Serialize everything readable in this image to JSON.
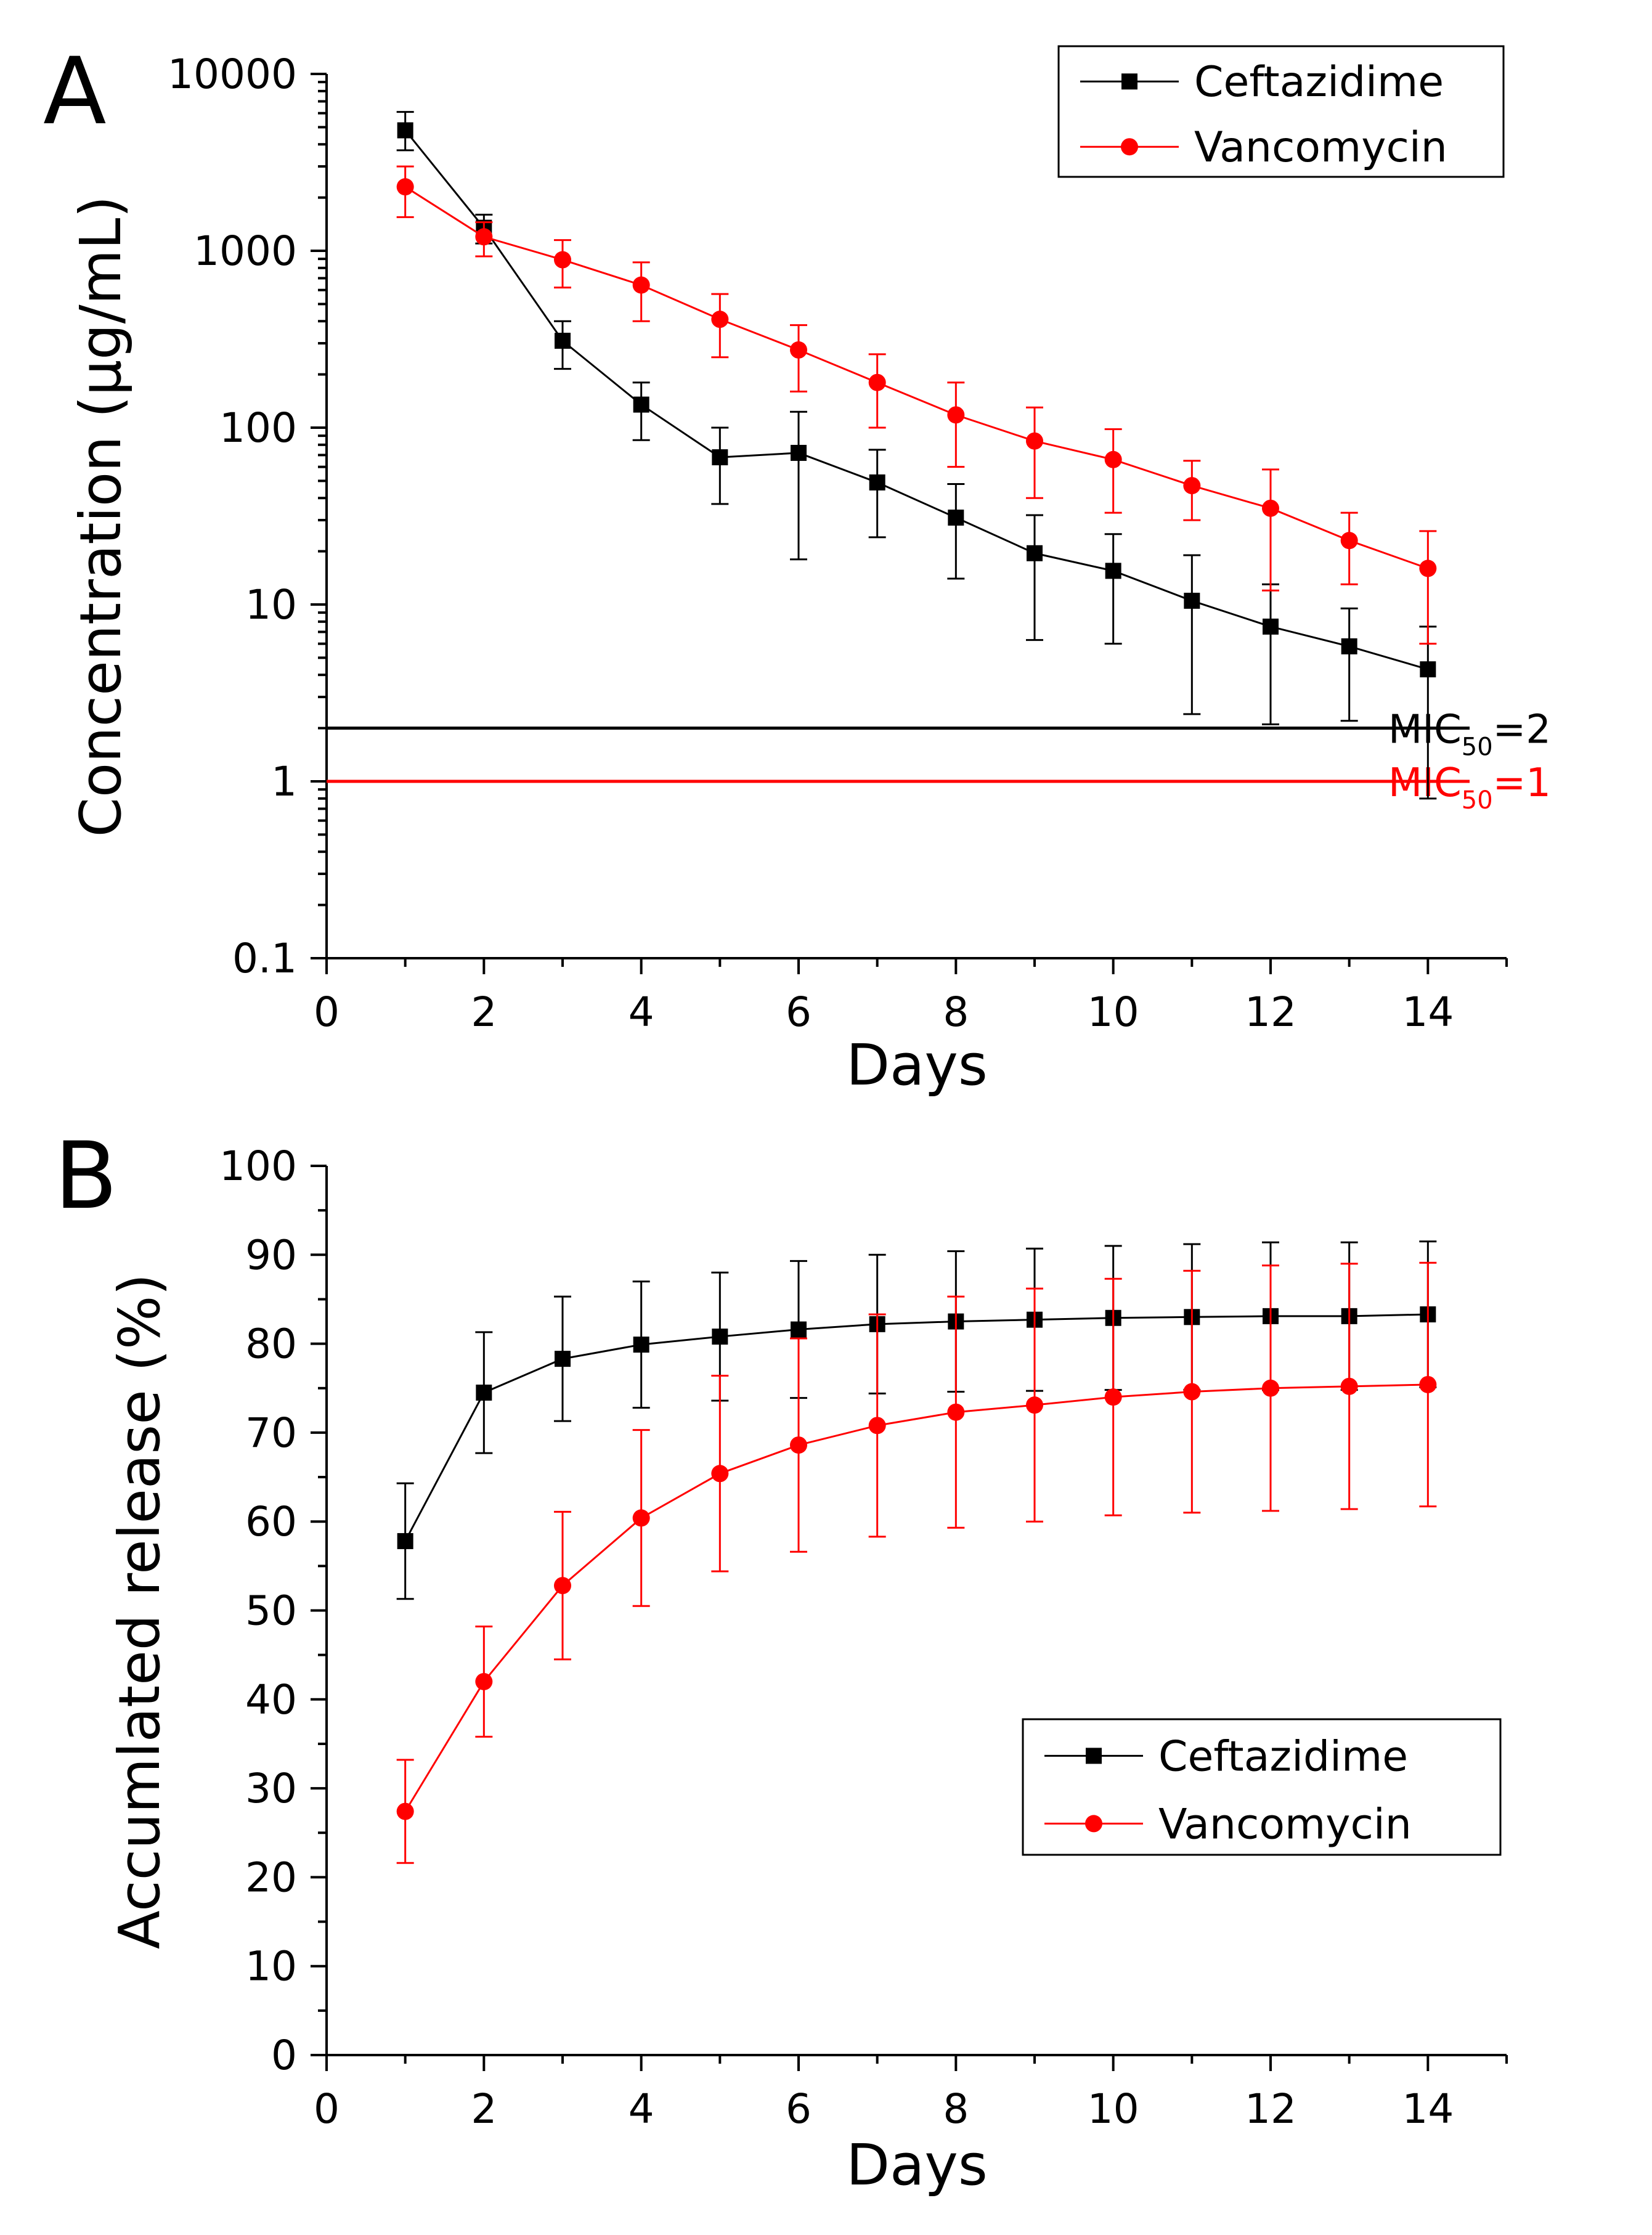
{
  "chart_data": [
    {
      "panel_label": "A",
      "type": "line",
      "yscale": "log",
      "xlabel": "Days",
      "ylabel": "Concentration (μg/mL)",
      "xlim": [
        0,
        15
      ],
      "ylim": [
        0.1,
        10000
      ],
      "xticks": [
        "0",
        "2",
        "4",
        "6",
        "8",
        "10",
        "12",
        "14"
      ],
      "xtick_values": [
        0,
        2,
        4,
        6,
        8,
        10,
        12,
        14
      ],
      "yticks": [
        "0.1",
        "1",
        "10",
        "100",
        "1000",
        "10000"
      ],
      "ytick_values": [
        0.1,
        1,
        10,
        100,
        1000,
        10000
      ],
      "legend_position": "top-right",
      "x": [
        1,
        2,
        3,
        4,
        5,
        6,
        7,
        8,
        9,
        10,
        11,
        12,
        13,
        14
      ],
      "series": [
        {
          "name": "Ceftazidime",
          "color": "#000000",
          "marker": "square",
          "values": [
            4800,
            1350,
            310,
            135,
            68,
            72,
            49,
            31,
            19.5,
            15.5,
            10.5,
            7.5,
            5.8,
            4.3
          ],
          "err_high": [
            6100,
            1600,
            400,
            180,
            100,
            123,
            75,
            48,
            32,
            25,
            19,
            13,
            9.5,
            7.5
          ],
          "err_low": [
            3700,
            1100,
            215,
            85,
            37,
            18,
            24,
            14,
            6.3,
            6,
            2.4,
            2.1,
            2.2,
            0.8
          ]
        },
        {
          "name": "Vancomycin",
          "color": "#ff0000",
          "marker": "circle",
          "values": [
            2300,
            1200,
            890,
            640,
            410,
            275,
            180,
            118,
            84,
            66,
            47,
            35,
            23,
            16
          ],
          "err_high": [
            3000,
            1450,
            1150,
            860,
            570,
            380,
            260,
            180,
            130,
            98,
            65,
            58,
            33,
            26
          ],
          "err_low": [
            1550,
            930,
            620,
            400,
            250,
            160,
            100,
            60,
            40,
            33,
            30,
            12,
            13,
            6
          ]
        }
      ],
      "annotations": [
        {
          "id": "mic-ceftazidime",
          "value": 2,
          "color": "#000000",
          "label_main": "MIC",
          "label_sub": "50",
          "label_tail": "=2"
        },
        {
          "id": "mic-vancomycin",
          "value": 1,
          "color": "#ff0000",
          "label_main": "MIC",
          "label_sub": "50",
          "label_tail": "=1"
        }
      ]
    },
    {
      "panel_label": "B",
      "type": "line",
      "yscale": "linear",
      "xlabel": "Days",
      "ylabel": "Accumlated release (%)",
      "xlim": [
        0,
        15
      ],
      "ylim": [
        0,
        100
      ],
      "xticks": [
        "0",
        "2",
        "4",
        "6",
        "8",
        "10",
        "12",
        "14"
      ],
      "xtick_values": [
        0,
        2,
        4,
        6,
        8,
        10,
        12,
        14
      ],
      "yticks": [
        "0",
        "10",
        "20",
        "30",
        "40",
        "50",
        "60",
        "70",
        "80",
        "90",
        "100"
      ],
      "ytick_values": [
        0,
        10,
        20,
        30,
        40,
        50,
        60,
        70,
        80,
        90,
        100
      ],
      "legend_position": "bottom-right",
      "x": [
        1,
        2,
        3,
        4,
        5,
        6,
        7,
        8,
        9,
        10,
        11,
        12,
        13,
        14
      ],
      "series": [
        {
          "name": "Ceftazidime",
          "color": "#000000",
          "marker": "square",
          "values": [
            57.8,
            74.5,
            78.3,
            79.9,
            80.8,
            81.6,
            82.2,
            82.5,
            82.7,
            82.9,
            83.0,
            83.1,
            83.1,
            83.3
          ],
          "err": [
            6.5,
            6.8,
            7.0,
            7.1,
            7.2,
            7.7,
            7.8,
            7.9,
            8.0,
            8.1,
            8.2,
            8.3,
            8.3,
            8.2
          ]
        },
        {
          "name": "Vancomycin",
          "color": "#ff0000",
          "marker": "circle",
          "values": [
            27.4,
            42.0,
            52.8,
            60.4,
            65.4,
            68.6,
            70.8,
            72.3,
            73.1,
            74.0,
            74.6,
            75.0,
            75.2,
            75.4
          ],
          "err": [
            5.8,
            6.2,
            8.3,
            9.9,
            11.0,
            12.0,
            12.5,
            13.0,
            13.1,
            13.3,
            13.6,
            13.8,
            13.8,
            13.7
          ]
        }
      ]
    }
  ]
}
